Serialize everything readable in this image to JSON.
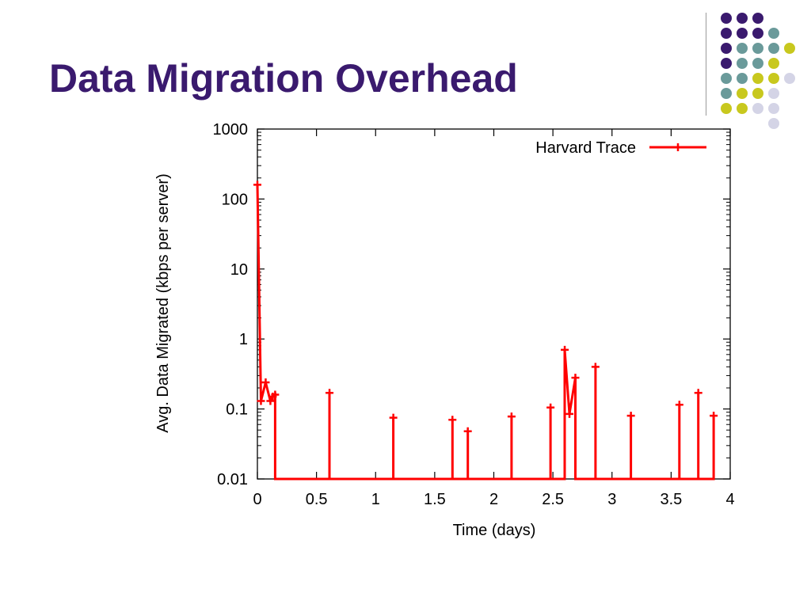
{
  "slide": {
    "title": "Data Migration Overhead"
  },
  "decoration": {
    "colors": [
      "#3a1a6e",
      "#6a9a9a",
      "#c8c81e",
      "#d4d4e6"
    ]
  },
  "chart_data": {
    "type": "line",
    "title": "",
    "xlabel": "Time (days)",
    "ylabel": "Avg. Data Migrated (kbps per server)",
    "xlim": [
      0,
      4
    ],
    "ylim": [
      0.01,
      1000
    ],
    "yscale": "log",
    "grid": false,
    "legend": "top-right",
    "x_ticks": [
      "0",
      "0.5",
      "1",
      "1.5",
      "2",
      "2.5",
      "3",
      "3.5",
      "4"
    ],
    "y_ticks": [
      "0.01",
      "0.1",
      "1",
      "10",
      "100",
      "1000"
    ],
    "series": [
      {
        "name": "Harvard Trace",
        "color": "#ff0000",
        "marker": "plus",
        "points": [
          [
            0.0,
            160
          ],
          [
            0.03,
            0.13
          ],
          [
            0.07,
            0.24
          ],
          [
            0.11,
            0.13
          ],
          [
            0.13,
            0.15
          ],
          [
            0.15,
            0.16
          ],
          [
            0.15,
            0.01
          ],
          [
            0.61,
            0.01
          ],
          [
            0.61,
            0.17
          ],
          [
            0.61,
            0.01
          ],
          [
            1.15,
            0.01
          ],
          [
            1.15,
            0.075
          ],
          [
            1.15,
            0.01
          ],
          [
            1.65,
            0.01
          ],
          [
            1.65,
            0.07
          ],
          [
            1.65,
            0.01
          ],
          [
            1.78,
            0.01
          ],
          [
            1.78,
            0.048
          ],
          [
            1.78,
            0.01
          ],
          [
            2.15,
            0.01
          ],
          [
            2.15,
            0.078
          ],
          [
            2.15,
            0.01
          ],
          [
            2.48,
            0.01
          ],
          [
            2.48,
            0.105
          ],
          [
            2.48,
            0.01
          ],
          [
            2.6,
            0.01
          ],
          [
            2.6,
            0.7
          ],
          [
            2.64,
            0.085
          ],
          [
            2.69,
            0.28
          ],
          [
            2.69,
            0.01
          ],
          [
            2.86,
            0.01
          ],
          [
            2.86,
            0.4
          ],
          [
            2.86,
            0.01
          ],
          [
            3.16,
            0.01
          ],
          [
            3.16,
            0.08
          ],
          [
            3.16,
            0.01
          ],
          [
            3.57,
            0.01
          ],
          [
            3.57,
            0.115
          ],
          [
            3.57,
            0.01
          ],
          [
            3.73,
            0.01
          ],
          [
            3.73,
            0.17
          ],
          [
            3.73,
            0.01
          ],
          [
            3.86,
            0.01
          ],
          [
            3.86,
            0.08
          ],
          [
            3.86,
            0.01
          ]
        ],
        "markers": [
          [
            0.0,
            160
          ],
          [
            0.03,
            0.13
          ],
          [
            0.07,
            0.24
          ],
          [
            0.11,
            0.13
          ],
          [
            0.13,
            0.15
          ],
          [
            0.15,
            0.16
          ],
          [
            0.61,
            0.17
          ],
          [
            1.15,
            0.075
          ],
          [
            1.65,
            0.07
          ],
          [
            1.78,
            0.048
          ],
          [
            2.15,
            0.078
          ],
          [
            2.48,
            0.105
          ],
          [
            2.6,
            0.7
          ],
          [
            2.64,
            0.085
          ],
          [
            2.69,
            0.28
          ],
          [
            2.86,
            0.4
          ],
          [
            3.16,
            0.08
          ],
          [
            3.57,
            0.115
          ],
          [
            3.73,
            0.17
          ],
          [
            3.86,
            0.08
          ]
        ]
      }
    ]
  }
}
